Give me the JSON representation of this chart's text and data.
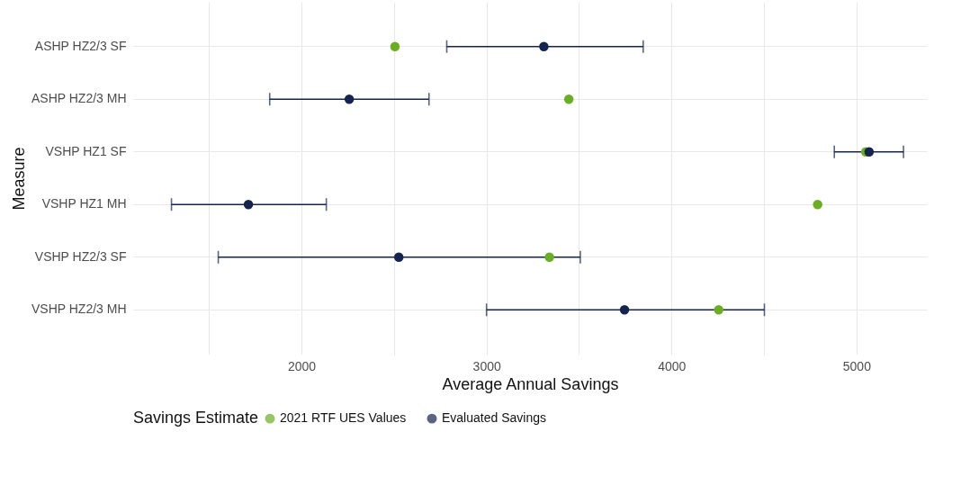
{
  "chart_data": {
    "type": "scatter",
    "xlabel": "Average Annual Savings",
    "ylabel": "Measure",
    "legend_title": "Savings Estimate",
    "orientation": "horizontal",
    "categories": [
      "ASHP HZ2/3 SF",
      "ASHP HZ2/3 MH",
      "VSHP HZ1 SF",
      "VSHP HZ1 MH",
      "VSHP HZ2/3 SF",
      "VSHP HZ2/3 MH"
    ],
    "series": [
      {
        "name": "2021 RTF UES Values",
        "color": "#6aaf23",
        "values": [
          2505,
          3445,
          5050,
          4790,
          3340,
          4255
        ]
      },
      {
        "name": "Evaluated Savings",
        "color": "#15244f",
        "values": [
          3310,
          2258,
          5068,
          1713,
          2526,
          3746
        ],
        "errors": [
          [
            2785,
            3847
          ],
          [
            1828,
            2689
          ],
          [
            4880,
            5254
          ],
          [
            1297,
            2134
          ],
          [
            1550,
            3507
          ],
          [
            3000,
            4502
          ]
        ]
      }
    ],
    "xlim": [
      1090,
      5380
    ],
    "xticks": [
      {
        "value": 1500,
        "label": null
      },
      2000,
      {
        "value": 2500,
        "label": null
      },
      3000,
      {
        "value": 3500,
        "label": null
      },
      4000,
      {
        "value": 4500,
        "label": null
      },
      5000
    ],
    "grid": true,
    "legend": "bottom",
    "marker": "circle"
  }
}
